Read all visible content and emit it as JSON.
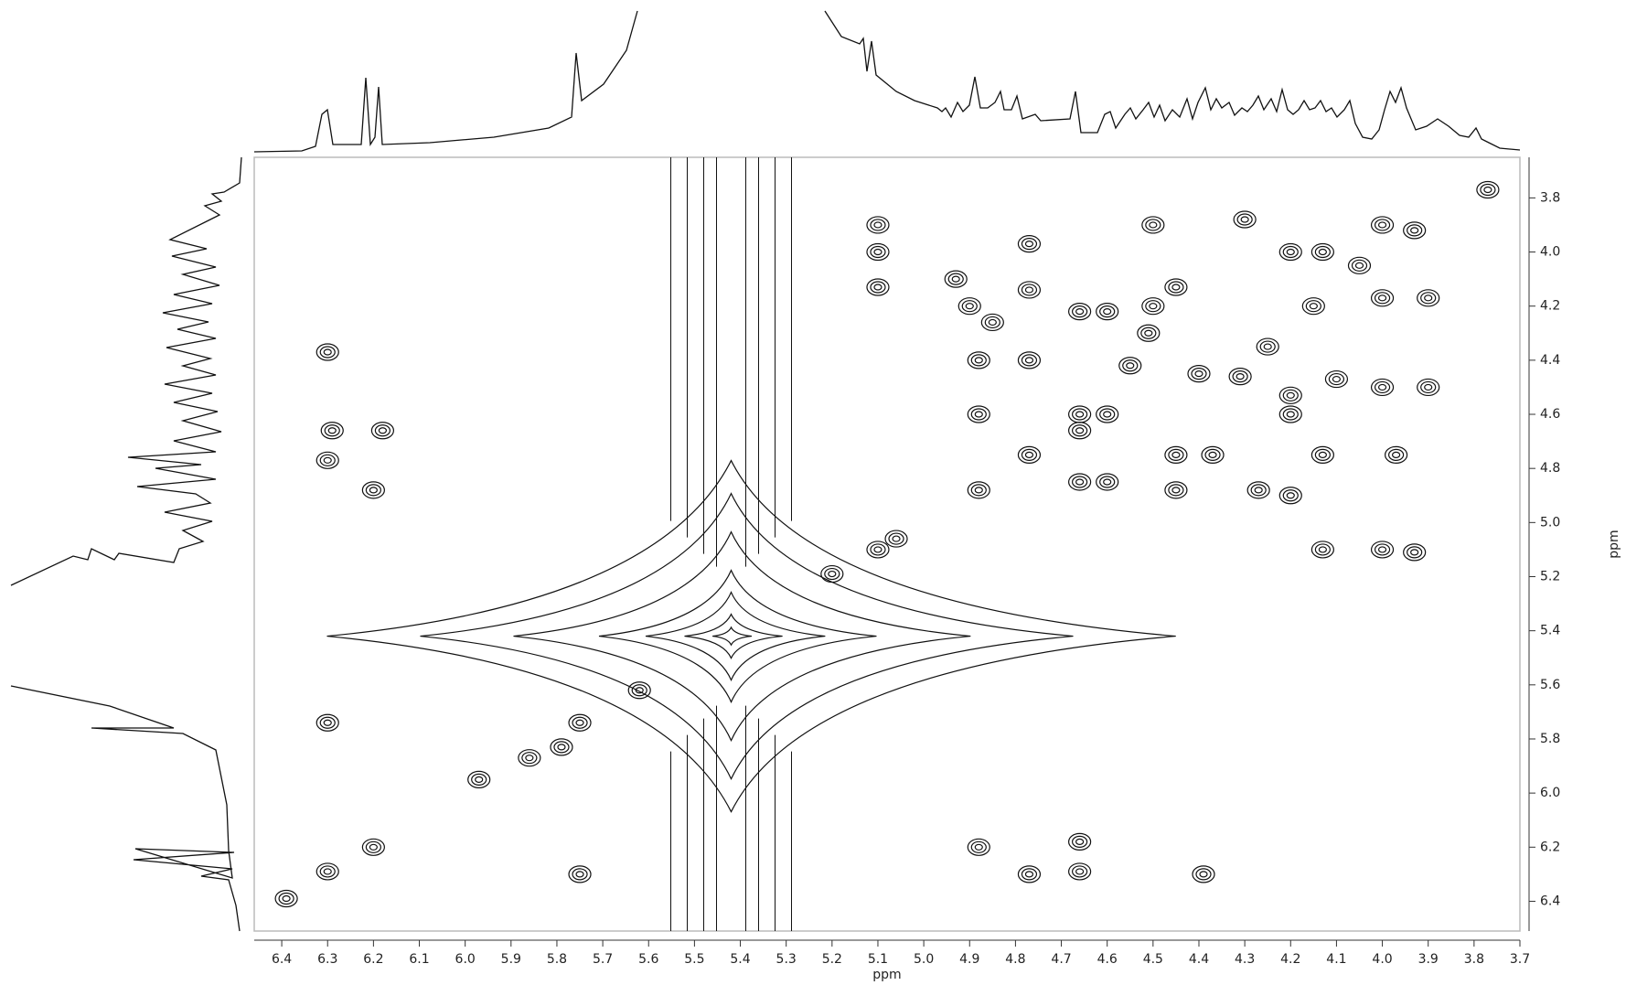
{
  "chart_data": {
    "type": "contour",
    "x_label": "ppm",
    "y_label": "ppm",
    "xlim": [
      6.46,
      3.7
    ],
    "ylim": [
      3.65,
      6.51
    ],
    "xticks": [
      6.4,
      6.3,
      6.2,
      6.1,
      {
        "value": 6,
        "label": "6.0"
      },
      5.9,
      5.8,
      5.7,
      5.6,
      5.5,
      5.4,
      5.3,
      5.2,
      5.1,
      {
        "value": 5,
        "label": "5.0"
      },
      4.9,
      4.8,
      4.7,
      4.6,
      4.5,
      4.4,
      4.3,
      4.2,
      4.1,
      {
        "value": 4,
        "label": "4.0"
      },
      3.9,
      3.8,
      3.7
    ],
    "yticks": [
      3.8,
      {
        "value": 4,
        "label": "4.0"
      },
      4.2,
      4.4,
      4.6,
      4.8,
      {
        "value": 5,
        "label": "5.0"
      },
      5.2,
      5.4,
      5.6,
      5.8,
      {
        "value": 6,
        "label": "6.0"
      },
      6.2,
      6.4
    ],
    "solvent_peak": {
      "x": 5.42,
      "y": 5.42
    },
    "peaks": {
      "x": [
        6.3,
        6.3,
        6.29,
        6.18,
        6.2,
        6.3,
        5.75,
        6.3,
        6.2,
        6.39,
        5.75,
        5.97,
        5.86,
        5.79,
        5.62,
        5.1,
        5.2,
        5.06,
        5.1,
        5.1,
        5.1,
        4.77,
        4.77,
        4.88,
        4.88,
        4.77,
        4.88,
        4.77,
        4.66,
        4.66,
        4.6,
        4.6,
        4.66,
        4.6,
        4.66,
        4.5,
        4.5,
        4.45,
        4.45,
        4.37,
        4.45,
        4.27,
        4.2,
        4.2,
        4.13,
        4.13,
        4.0,
        3.93,
        3.97,
        4.0,
        3.9,
        4.0,
        3.93,
        4.0,
        3.9,
        3.77,
        4.13,
        4.2,
        4.88,
        4.77,
        4.66,
        4.39,
        4.66,
        4.93,
        4.9,
        4.85,
        4.3,
        4.25,
        4.15,
        4.05,
        4.1,
        4.31,
        4.4,
        4.55,
        4.51,
        4.2
      ],
      "y": [
        4.37,
        4.77,
        4.66,
        4.66,
        4.88,
        5.74,
        5.74,
        6.29,
        6.2,
        6.39,
        6.3,
        5.95,
        5.87,
        5.83,
        5.62,
        5.1,
        5.19,
        5.06,
        3.9,
        4.0,
        4.13,
        3.97,
        4.14,
        4.4,
        4.6,
        4.4,
        4.88,
        4.75,
        4.6,
        4.66,
        4.6,
        4.85,
        4.85,
        4.22,
        4.22,
        3.9,
        4.2,
        4.13,
        4.75,
        4.75,
        4.88,
        4.88,
        4.53,
        4.6,
        4.75,
        5.1,
        5.1,
        5.11,
        4.75,
        4.5,
        4.5,
        3.9,
        3.92,
        4.17,
        4.17,
        3.77,
        4.0,
        4.0,
        6.2,
        6.3,
        6.18,
        6.3,
        6.29,
        4.1,
        4.2,
        4.26,
        3.88,
        4.35,
        4.2,
        4.05,
        4.47,
        4.46,
        4.45,
        4.42,
        4.3,
        4.9
      ]
    }
  }
}
